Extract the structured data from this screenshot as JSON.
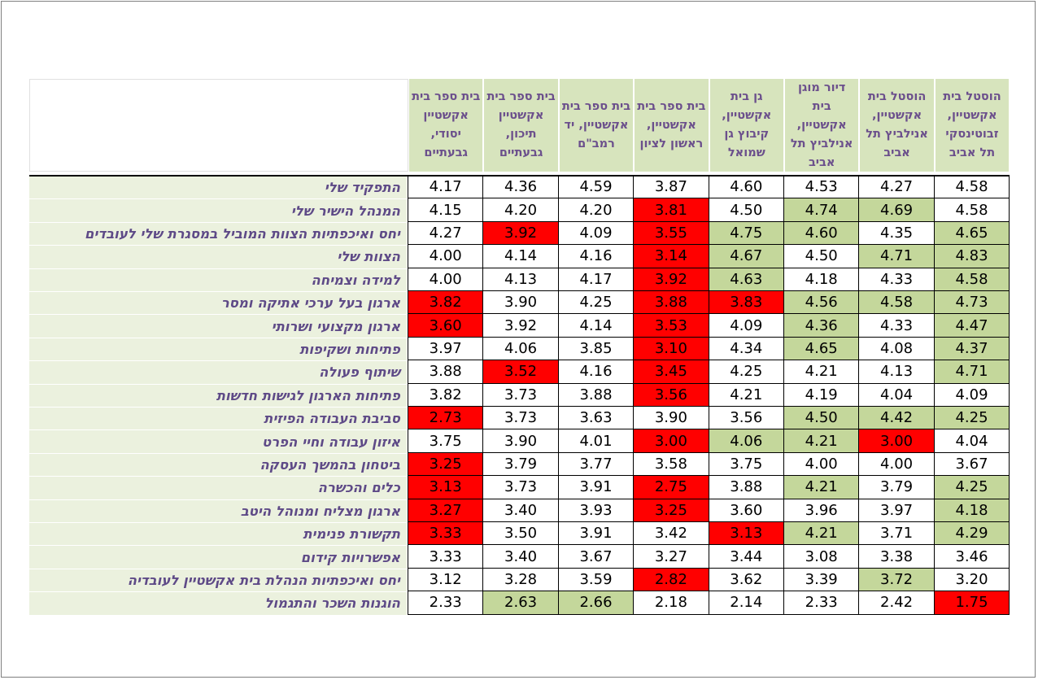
{
  "chart_data": {
    "type": "table",
    "columns": [
      "הוסטל בית אקשטיין, זבוטינסקי תל אביב",
      "הוסטל בית אקשטיין, אנילביץ תל אביב",
      "דיור מוגן בית אקשטיין, אנילביץ תל אביב",
      "גן בית אקשטיין, קיבוץ גן שמואל",
      "בית ספר בית אקשטיין, ראשון לציון",
      "בית ספר בית אקשטיין, יד רמב\"ם",
      "בית ספר בית אקשטיין תיכון, גבעתיים",
      "בית ספר בית אקשטיין יסודי, גבעתיים"
    ],
    "rows": [
      {
        "label": "התפקיד שלי",
        "values": [
          4.58,
          4.27,
          4.53,
          4.6,
          3.87,
          4.59,
          4.36,
          4.17
        ],
        "status": [
          "n",
          "n",
          "n",
          "n",
          "n",
          "n",
          "n",
          "n"
        ]
      },
      {
        "label": "המנהל הישיר שלי",
        "values": [
          4.58,
          4.69,
          4.74,
          4.5,
          3.81,
          4.2,
          4.2,
          4.15
        ],
        "status": [
          "n",
          "g",
          "g",
          "n",
          "r",
          "n",
          "n",
          "n"
        ]
      },
      {
        "label": "יחס ואיכפתיות הצוות המוביל במסגרת שלי לעובדים",
        "values": [
          4.65,
          4.35,
          4.6,
          4.75,
          3.55,
          4.09,
          3.92,
          4.27
        ],
        "status": [
          "g",
          "n",
          "g",
          "g",
          "r",
          "n",
          "r",
          "n"
        ]
      },
      {
        "label": "הצוות שלי",
        "values": [
          4.83,
          4.71,
          4.5,
          4.67,
          3.14,
          4.16,
          4.14,
          4.0
        ],
        "status": [
          "g",
          "g",
          "n",
          "g",
          "r",
          "n",
          "n",
          "n"
        ]
      },
      {
        "label": "למידה וצמיחה",
        "values": [
          4.58,
          4.33,
          4.18,
          4.63,
          3.92,
          4.17,
          4.13,
          4.0
        ],
        "status": [
          "g",
          "n",
          "n",
          "g",
          "r",
          "n",
          "n",
          "n"
        ]
      },
      {
        "label": "ארגון בעל ערכי אתיקה ומסר",
        "values": [
          4.73,
          4.58,
          4.56,
          3.83,
          3.88,
          4.25,
          3.9,
          3.82
        ],
        "status": [
          "g",
          "g",
          "g",
          "r",
          "r",
          "n",
          "n",
          "r"
        ]
      },
      {
        "label": "ארגון מקצועי ושרותי",
        "values": [
          4.47,
          4.33,
          4.36,
          4.09,
          3.53,
          4.14,
          3.92,
          3.6
        ],
        "status": [
          "g",
          "n",
          "g",
          "n",
          "r",
          "n",
          "n",
          "r"
        ]
      },
      {
        "label": "פתיחות ושקיפות",
        "values": [
          4.37,
          4.08,
          4.65,
          4.34,
          3.1,
          3.85,
          4.06,
          3.97
        ],
        "status": [
          "g",
          "n",
          "g",
          "n",
          "r",
          "n",
          "n",
          "n"
        ]
      },
      {
        "label": "שיתוף פעולה",
        "values": [
          4.71,
          4.13,
          4.21,
          4.25,
          3.45,
          4.16,
          3.52,
          3.88
        ],
        "status": [
          "g",
          "n",
          "n",
          "n",
          "r",
          "n",
          "r",
          "n"
        ]
      },
      {
        "label": "פתיחות הארגון לגישות חדשות",
        "values": [
          4.09,
          4.04,
          4.19,
          4.21,
          3.56,
          3.88,
          3.73,
          3.82
        ],
        "status": [
          "n",
          "n",
          "n",
          "n",
          "r",
          "n",
          "n",
          "n"
        ]
      },
      {
        "label": "סביבת העבודה הפיזית",
        "values": [
          4.25,
          4.42,
          4.5,
          3.56,
          3.9,
          3.63,
          3.73,
          2.73
        ],
        "status": [
          "g",
          "g",
          "g",
          "n",
          "n",
          "n",
          "n",
          "r"
        ]
      },
      {
        "label": "איזון עבודה וחיי הפרט",
        "values": [
          4.04,
          3.0,
          4.21,
          4.06,
          3.0,
          4.01,
          3.9,
          3.75
        ],
        "status": [
          "n",
          "r",
          "g",
          "g",
          "r",
          "n",
          "n",
          "n"
        ]
      },
      {
        "label": "ביטחון בהמשך העסקה",
        "values": [
          3.67,
          4.0,
          4.0,
          3.75,
          3.58,
          3.77,
          3.79,
          3.25
        ],
        "status": [
          "n",
          "n",
          "n",
          "n",
          "n",
          "n",
          "n",
          "r"
        ]
      },
      {
        "label": "כלים והכשרה",
        "values": [
          4.25,
          3.79,
          4.21,
          3.88,
          2.75,
          3.91,
          3.73,
          3.13
        ],
        "status": [
          "g",
          "n",
          "g",
          "n",
          "r",
          "n",
          "n",
          "r"
        ]
      },
      {
        "label": "ארגון מצליח ומנוהל היטב",
        "values": [
          4.18,
          3.97,
          3.96,
          3.6,
          3.25,
          3.93,
          3.4,
          3.27
        ],
        "status": [
          "g",
          "n",
          "n",
          "n",
          "r",
          "n",
          "n",
          "r"
        ]
      },
      {
        "label": "תקשורת פנימית",
        "values": [
          4.29,
          3.71,
          4.21,
          3.13,
          3.42,
          3.91,
          3.5,
          3.33
        ],
        "status": [
          "g",
          "n",
          "g",
          "r",
          "n",
          "n",
          "n",
          "r"
        ]
      },
      {
        "label": "אפשרויות קידום",
        "values": [
          3.46,
          3.38,
          3.08,
          3.44,
          3.27,
          3.67,
          3.4,
          3.33
        ],
        "status": [
          "n",
          "n",
          "n",
          "n",
          "n",
          "n",
          "n",
          "n"
        ]
      },
      {
        "label": "יחס ואיכפתיות הנהלת בית אקשטיין לעובדיה",
        "values": [
          3.2,
          3.72,
          3.39,
          3.62,
          2.82,
          3.59,
          3.28,
          3.12
        ],
        "status": [
          "n",
          "g",
          "n",
          "n",
          "r",
          "n",
          "n",
          "n"
        ]
      },
      {
        "label": "הוגנות השכר והתגמול",
        "values": [
          1.75,
          2.42,
          2.33,
          2.14,
          2.18,
          2.66,
          2.63,
          2.33
        ],
        "status": [
          "r",
          "n",
          "n",
          "n",
          "n",
          "g",
          "g",
          "n"
        ]
      }
    ]
  },
  "colors": {
    "green": "#c4d79b",
    "red": "#ff0000",
    "header_bg": "#d7e4bd",
    "label_bg": "#ebf1de",
    "header_text": "#6b4f8c",
    "label_text": "#5e4a87"
  }
}
